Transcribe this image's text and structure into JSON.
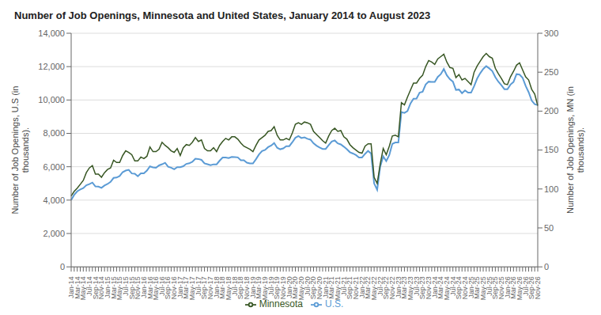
{
  "chart_data": {
    "type": "line",
    "title": "Number of Job Openings, Minnesota and United States, January 2014 to August 2023",
    "ylabel": "Number of Job Openings, U.S (in\nthousands).",
    "y2label": "Number of Job Openings, MN (in\nthousands).",
    "categories": [
      "Jan-14",
      null,
      "Mar-14",
      null,
      "May-14",
      null,
      "Jul-14",
      null,
      "Sep-14",
      null,
      "Nov-14",
      null,
      "Jan-15",
      null,
      "Mar-15",
      null,
      "May-15",
      null,
      "Jul-15",
      null,
      "Sep-15",
      null,
      "Nov-15",
      null,
      "Jan-16",
      null,
      "Mar-16",
      null,
      "May-16",
      null,
      "Jul-16",
      null,
      "Sep-16",
      null,
      "Nov-16",
      null,
      "Jan-17",
      null,
      "Mar-17",
      null,
      "May-17",
      null,
      "Jul-17",
      null,
      "Sep-17",
      null,
      "Nov-17",
      null,
      "Jan-18",
      null,
      "Mar-18",
      null,
      "May-18",
      null,
      "Jul-18",
      null,
      "Sep-18",
      null,
      "Nov-18",
      null,
      "Jan-19",
      null,
      "Mar-19",
      null,
      "May-19",
      null,
      "Jul-19",
      null,
      "Sep-19",
      null,
      "Nov-19",
      null,
      "Jan-20",
      null,
      "Mar-20",
      null,
      "May-20",
      null,
      "Jul-20",
      null,
      "Sep-20",
      null,
      "Nov-20",
      null,
      "Jan-21",
      null,
      "Mar-21",
      null,
      "May-21",
      null,
      "Jul-21",
      null,
      "Sep-21",
      null,
      "Nov-21",
      null,
      "Jan-22",
      null,
      "Mar-22",
      null,
      "May-22",
      null,
      "Jul-22",
      null,
      "Sep-22",
      null,
      "Nov-22",
      null,
      "Jan-23",
      null,
      "Mar-23",
      null,
      "May-23",
      null,
      "Jul-23",
      null,
      "Sep-23",
      null,
      "Nov-23",
      null,
      "Jan-24",
      null,
      "Mar-24",
      null,
      "May-24",
      null,
      "Jul-24",
      null,
      "Sep-24",
      null,
      "Nov-24",
      null,
      "Jan-25",
      null,
      "Mar-25",
      null,
      "May-25",
      null,
      "Jul-25",
      null,
      "Sep-25",
      null,
      "Nov-25",
      null,
      "Jan-26",
      null,
      "Mar-26",
      null,
      "May-26",
      null,
      "Jul-26",
      null,
      "Sep-26",
      null,
      "Nov-26"
    ],
    "series": [
      {
        "name": "U.S.",
        "color": "#5B9BD5",
        "axis": "y",
        "values": [
          4001,
          4315,
          4527,
          4635,
          4719,
          4891,
          4960,
          5050,
          4820,
          4811,
          4736,
          4877,
          4965,
          5091,
          5331,
          5353,
          5441,
          5676,
          5770,
          5814,
          5598,
          5584,
          5431,
          5607,
          5607,
          5765,
          6018,
          5961,
          5940,
          6081,
          6148,
          6235,
          6003,
          5941,
          5848,
          5974,
          5974,
          6028,
          6171,
          6206,
          6293,
          6479,
          6463,
          6413,
          6204,
          6151,
          6090,
          6143,
          6143,
          6362,
          6549,
          6558,
          6518,
          6590,
          6582,
          6560,
          6391,
          6384,
          6244,
          6199,
          6199,
          6453,
          6735,
          6938,
          7004,
          7174,
          7270,
          7424,
          7136,
          7048,
          7099,
          7231,
          7231,
          7469,
          7735,
          7835,
          7718,
          7757,
          7673,
          7622,
          7404,
          7261,
          7150,
          7069,
          7069,
          7300,
          7514,
          7573,
          7399,
          7339,
          7201,
          7051,
          6871,
          6792,
          6700,
          6556,
          6556,
          6771,
          6950,
          6786,
          4996,
          4623,
          6001,
          6618,
          6336,
          6701,
          7372,
          7449,
          7449,
          9277,
          9228,
          9338,
          9798,
          10073,
          10090,
          10439,
          10494,
          10925,
          11100,
          11081,
          11081,
          11384,
          11549,
          11855,
          11478,
          11242,
          11098,
          10605,
          10626,
          10408,
          10576,
          10439,
          10439,
          10824,
          11283,
          11600,
          11855,
          12027,
          11895,
          11733,
          11370,
          11098,
          10883,
          10647,
          10647,
          10925,
          11077,
          11549,
          11520,
          11335,
          10850,
          10469,
          9964,
          9745,
          9700
        ]
      },
      {
        "name": "Minnesota",
        "color": "#375623",
        "axis": "y2",
        "values": [
          91,
          97,
          101,
          106,
          111,
          121,
          127,
          130,
          119,
          119,
          115,
          121,
          125,
          127,
          137,
          134,
          134,
          143,
          149,
          147,
          144,
          136,
          136,
          141,
          139,
          142,
          154,
          148,
          148,
          151,
          160,
          156,
          153,
          149,
          147,
          152,
          143,
          153,
          157,
          156,
          160,
          166,
          161,
          163,
          152,
          149,
          149,
          153,
          148,
          156,
          161,
          165,
          163,
          167,
          167,
          164,
          159,
          155,
          153,
          151,
          148,
          156,
          163,
          166,
          169,
          174,
          175,
          180,
          169,
          163,
          163,
          165,
          163,
          172,
          183,
          185,
          183,
          186,
          185,
          183,
          174,
          170,
          166,
          162,
          159,
          168,
          175,
          178,
          174,
          175,
          167,
          164,
          157,
          153,
          150,
          147,
          146,
          155,
          158,
          158,
          115,
          107,
          132,
          152,
          144,
          155,
          168,
          169,
          167,
          211,
          208,
          218,
          227,
          236,
          236,
          242,
          246,
          257,
          265,
          263,
          260,
          267,
          270,
          273,
          263,
          256,
          255,
          243,
          247,
          240,
          242,
          238,
          234,
          250,
          258,
          264,
          270,
          274,
          270,
          268,
          255,
          248,
          242,
          235,
          234,
          244,
          251,
          259,
          262,
          253,
          244,
          240,
          228,
          222,
          207
        ]
      }
    ],
    "ylim": [
      0,
      14000
    ],
    "yticks": [
      0,
      {
        "value": 2000,
        "label": "2,000"
      },
      {
        "value": 4000,
        "label": "4,000"
      },
      {
        "value": 6000,
        "label": "6,000"
      },
      {
        "value": 8000,
        "label": "8,000"
      },
      {
        "value": 10000,
        "label": "10,000"
      },
      {
        "value": 12000,
        "label": "12,000"
      },
      {
        "value": 14000,
        "label": "14,000"
      }
    ],
    "y2lim": [
      0,
      300
    ],
    "y2ticks": [
      0,
      50,
      100,
      150,
      200,
      250,
      300
    ],
    "grid": true,
    "legend": "bottom"
  }
}
